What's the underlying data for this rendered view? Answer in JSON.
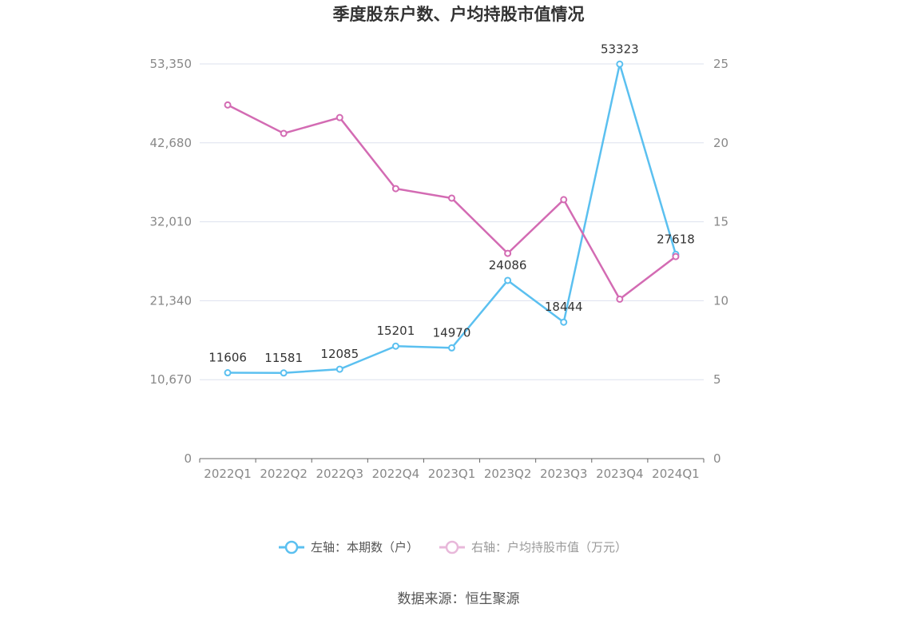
{
  "title": "季度股东户数、户均持股市值情况",
  "source": "数据来源：恒生聚源",
  "colors": {
    "left_series": "#5bc0f0",
    "right_series": "#d36bb3",
    "grid": "#dde1ee",
    "axis": "#666666"
  },
  "chart_data": {
    "type": "line",
    "categories": [
      "2022Q1",
      "2022Q2",
      "2022Q3",
      "2022Q4",
      "2023Q1",
      "2023Q2",
      "2023Q3",
      "2023Q4",
      "2024Q1"
    ],
    "left_axis": {
      "ylim": [
        0,
        53350
      ],
      "ticks": [
        "0",
        "10,670",
        "21,340",
        "32,010",
        "42,680",
        "53,350"
      ]
    },
    "right_axis": {
      "ylim": [
        0,
        25
      ],
      "ticks": [
        "0",
        "5",
        "10",
        "15",
        "20",
        "25"
      ]
    },
    "series": [
      {
        "name": "左轴：本期数（户）",
        "axis": "left",
        "values": [
          11606,
          11581,
          12085,
          15201,
          14970,
          24086,
          18444,
          53323,
          27618
        ],
        "labels": [
          "11606",
          "11581",
          "12085",
          "15201",
          "14970",
          "24086",
          "18444",
          "53323",
          "27618"
        ]
      },
      {
        "name": "右轴：户均持股市值（万元）",
        "axis": "right",
        "values": [
          22.4,
          20.6,
          21.6,
          17.1,
          16.5,
          13.0,
          16.4,
          10.1,
          12.8
        ]
      }
    ],
    "grid": true,
    "legend": "bottom-center"
  }
}
